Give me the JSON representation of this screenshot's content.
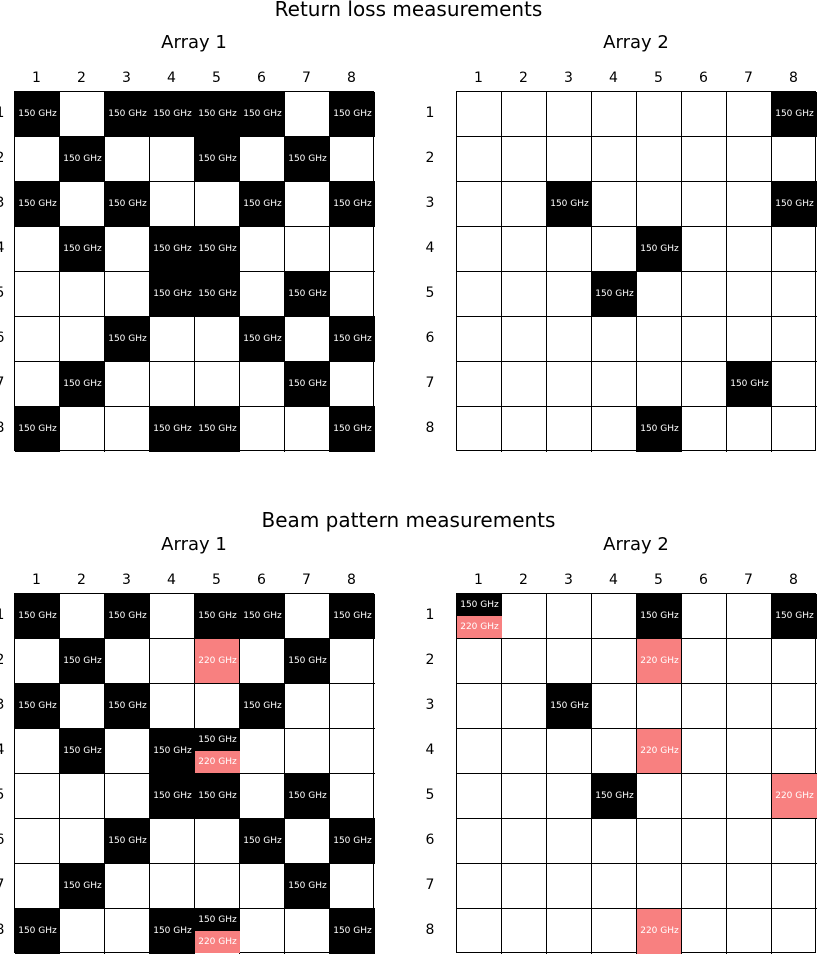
{
  "chart_data": [
    {
      "type": "table",
      "section": "Return loss measurements",
      "title": "Array 1",
      "columns": [
        "1",
        "2",
        "3",
        "4",
        "5",
        "6",
        "7",
        "8"
      ],
      "rows": [
        "1",
        "2",
        "3",
        "4",
        "5",
        "6",
        "7",
        "8"
      ],
      "cells": [
        {
          "row": 1,
          "col": 1,
          "labels": [
            "150 GHz"
          ]
        },
        {
          "row": 1,
          "col": 3,
          "labels": [
            "150 GHz"
          ]
        },
        {
          "row": 1,
          "col": 4,
          "labels": [
            "150 GHz"
          ]
        },
        {
          "row": 1,
          "col": 5,
          "labels": [
            "150 GHz"
          ]
        },
        {
          "row": 1,
          "col": 6,
          "labels": [
            "150 GHz"
          ]
        },
        {
          "row": 1,
          "col": 8,
          "labels": [
            "150 GHz"
          ]
        },
        {
          "row": 2,
          "col": 2,
          "labels": [
            "150 GHz"
          ]
        },
        {
          "row": 2,
          "col": 5,
          "labels": [
            "150 GHz"
          ]
        },
        {
          "row": 2,
          "col": 7,
          "labels": [
            "150 GHz"
          ]
        },
        {
          "row": 3,
          "col": 1,
          "labels": [
            "150 GHz"
          ]
        },
        {
          "row": 3,
          "col": 3,
          "labels": [
            "150 GHz"
          ]
        },
        {
          "row": 3,
          "col": 6,
          "labels": [
            "150 GHz"
          ]
        },
        {
          "row": 3,
          "col": 8,
          "labels": [
            "150 GHz"
          ]
        },
        {
          "row": 4,
          "col": 2,
          "labels": [
            "150 GHz"
          ]
        },
        {
          "row": 4,
          "col": 4,
          "labels": [
            "150 GHz"
          ]
        },
        {
          "row": 4,
          "col": 5,
          "labels": [
            "150 GHz"
          ]
        },
        {
          "row": 5,
          "col": 4,
          "labels": [
            "150 GHz"
          ]
        },
        {
          "row": 5,
          "col": 5,
          "labels": [
            "150 GHz"
          ]
        },
        {
          "row": 5,
          "col": 7,
          "labels": [
            "150 GHz"
          ]
        },
        {
          "row": 6,
          "col": 3,
          "labels": [
            "150 GHz"
          ]
        },
        {
          "row": 6,
          "col": 6,
          "labels": [
            "150 GHz"
          ]
        },
        {
          "row": 6,
          "col": 8,
          "labels": [
            "150 GHz"
          ]
        },
        {
          "row": 7,
          "col": 2,
          "labels": [
            "150 GHz"
          ]
        },
        {
          "row": 7,
          "col": 7,
          "labels": [
            "150 GHz"
          ]
        },
        {
          "row": 8,
          "col": 1,
          "labels": [
            "150 GHz"
          ]
        },
        {
          "row": 8,
          "col": 4,
          "labels": [
            "150 GHz"
          ]
        },
        {
          "row": 8,
          "col": 5,
          "labels": [
            "150 GHz"
          ]
        },
        {
          "row": 8,
          "col": 8,
          "labels": [
            "150 GHz"
          ]
        }
      ]
    },
    {
      "type": "table",
      "section": "Return loss measurements",
      "title": "Array 2",
      "columns": [
        "1",
        "2",
        "3",
        "4",
        "5",
        "6",
        "7",
        "8"
      ],
      "rows": [
        "1",
        "2",
        "3",
        "4",
        "5",
        "6",
        "7",
        "8"
      ],
      "cells": [
        {
          "row": 1,
          "col": 8,
          "labels": [
            "150 GHz"
          ]
        },
        {
          "row": 3,
          "col": 3,
          "labels": [
            "150 GHz"
          ]
        },
        {
          "row": 3,
          "col": 8,
          "labels": [
            "150 GHz"
          ]
        },
        {
          "row": 4,
          "col": 5,
          "labels": [
            "150 GHz"
          ]
        },
        {
          "row": 5,
          "col": 4,
          "labels": [
            "150 GHz"
          ]
        },
        {
          "row": 7,
          "col": 7,
          "labels": [
            "150 GHz"
          ]
        },
        {
          "row": 8,
          "col": 5,
          "labels": [
            "150 GHz"
          ]
        }
      ]
    },
    {
      "type": "table",
      "section": "Beam pattern measurements",
      "title": "Array 1",
      "columns": [
        "1",
        "2",
        "3",
        "4",
        "5",
        "6",
        "7",
        "8"
      ],
      "rows": [
        "1",
        "2",
        "3",
        "4",
        "5",
        "6",
        "7",
        "8"
      ],
      "cells": [
        {
          "row": 1,
          "col": 1,
          "labels": [
            "150 GHz"
          ]
        },
        {
          "row": 1,
          "col": 3,
          "labels": [
            "150 GHz"
          ]
        },
        {
          "row": 1,
          "col": 5,
          "labels": [
            "150 GHz"
          ]
        },
        {
          "row": 1,
          "col": 6,
          "labels": [
            "150 GHz"
          ]
        },
        {
          "row": 1,
          "col": 8,
          "labels": [
            "150 GHz"
          ]
        },
        {
          "row": 2,
          "col": 2,
          "labels": [
            "150 GHz"
          ]
        },
        {
          "row": 2,
          "col": 5,
          "labels": [
            "220 GHz"
          ]
        },
        {
          "row": 2,
          "col": 7,
          "labels": [
            "150 GHz"
          ]
        },
        {
          "row": 3,
          "col": 1,
          "labels": [
            "150 GHz"
          ]
        },
        {
          "row": 3,
          "col": 3,
          "labels": [
            "150 GHz"
          ]
        },
        {
          "row": 3,
          "col": 6,
          "labels": [
            "150 GHz"
          ]
        },
        {
          "row": 4,
          "col": 2,
          "labels": [
            "150 GHz"
          ]
        },
        {
          "row": 4,
          "col": 4,
          "labels": [
            "150 GHz"
          ]
        },
        {
          "row": 4,
          "col": 5,
          "labels": [
            "150 GHz",
            "220 GHz"
          ]
        },
        {
          "row": 5,
          "col": 4,
          "labels": [
            "150 GHz"
          ]
        },
        {
          "row": 5,
          "col": 5,
          "labels": [
            "150 GHz"
          ]
        },
        {
          "row": 5,
          "col": 7,
          "labels": [
            "150 GHz"
          ]
        },
        {
          "row": 6,
          "col": 3,
          "labels": [
            "150 GHz"
          ]
        },
        {
          "row": 6,
          "col": 6,
          "labels": [
            "150 GHz"
          ]
        },
        {
          "row": 6,
          "col": 8,
          "labels": [
            "150 GHz"
          ]
        },
        {
          "row": 7,
          "col": 2,
          "labels": [
            "150 GHz"
          ]
        },
        {
          "row": 7,
          "col": 7,
          "labels": [
            "150 GHz"
          ]
        },
        {
          "row": 8,
          "col": 1,
          "labels": [
            "150 GHz"
          ]
        },
        {
          "row": 8,
          "col": 4,
          "labels": [
            "150 GHz"
          ]
        },
        {
          "row": 8,
          "col": 5,
          "labels": [
            "150 GHz",
            "220 GHz"
          ]
        },
        {
          "row": 8,
          "col": 8,
          "labels": [
            "150 GHz"
          ]
        }
      ]
    },
    {
      "type": "table",
      "section": "Beam pattern measurements",
      "title": "Array 2",
      "columns": [
        "1",
        "2",
        "3",
        "4",
        "5",
        "6",
        "7",
        "8"
      ],
      "rows": [
        "1",
        "2",
        "3",
        "4",
        "5",
        "6",
        "7",
        "8"
      ],
      "cells": [
        {
          "row": 1,
          "col": 1,
          "labels": [
            "150 GHz",
            "220 GHz"
          ]
        },
        {
          "row": 1,
          "col": 5,
          "labels": [
            "150 GHz"
          ]
        },
        {
          "row": 1,
          "col": 8,
          "labels": [
            "150 GHz"
          ]
        },
        {
          "row": 2,
          "col": 5,
          "labels": [
            "220 GHz"
          ]
        },
        {
          "row": 3,
          "col": 3,
          "labels": [
            "150 GHz"
          ]
        },
        {
          "row": 4,
          "col": 5,
          "labels": [
            "220 GHz"
          ]
        },
        {
          "row": 5,
          "col": 4,
          "labels": [
            "150 GHz"
          ]
        },
        {
          "row": 5,
          "col": 8,
          "labels": [
            "220 GHz"
          ]
        },
        {
          "row": 8,
          "col": 5,
          "labels": [
            "220 GHz"
          ]
        }
      ]
    }
  ],
  "sections": {
    "return_loss": "Return loss measurements",
    "beam_pattern": "Beam pattern measurements"
  },
  "colors": {
    "150 GHz": "#000000",
    "220 GHz": "#f88080",
    "grid_line": "#000000",
    "background": "#ffffff",
    "cell_text": "#ffffff"
  }
}
